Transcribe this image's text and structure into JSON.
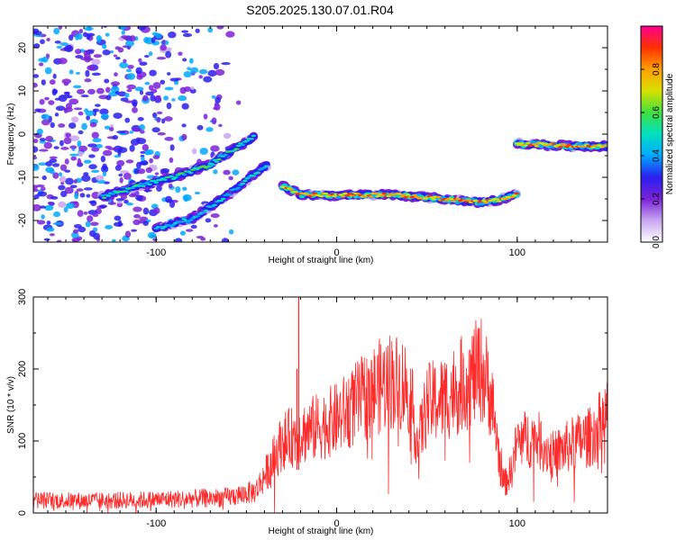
{
  "title": "S205.2025.130.07.01.R04",
  "chart_data": [
    {
      "type": "heatmap",
      "xlabel": "Height of straight line (km)",
      "ylabel": "Frequency (Hz)",
      "xlim": [
        -168,
        150
      ],
      "ylim": [
        -25,
        25
      ],
      "xticks": [
        -100,
        0,
        100
      ],
      "yticks": [
        -20,
        -10,
        0,
        10,
        20
      ],
      "colorbar": {
        "label": "Normalized spectral amplitude",
        "range": [
          0,
          1
        ],
        "ticks": [
          0.0,
          0.2,
          0.4,
          0.6,
          0.8
        ],
        "tick_labels": [
          "0.0",
          "0.2",
          "0.4",
          "0.6",
          "0.8"
        ],
        "colors": [
          "#ffffff",
          "#c9a6f0",
          "#7a22d8",
          "#2a1ff0",
          "#00a8ff",
          "#00e0c0",
          "#40e040",
          "#d8e000",
          "#ffa000",
          "#ff3000",
          "#ff0090"
        ]
      },
      "features": [
        {
          "name": "main_track",
          "points": [
            [
              -30,
              -12
            ],
            [
              -20,
              -14
            ],
            [
              0,
              -14.2
            ],
            [
              30,
              -14
            ],
            [
              60,
              -15
            ],
            [
              80,
              -15.8
            ],
            [
              90,
              -15.2
            ],
            [
              100,
              -13.8
            ]
          ],
          "amplitude": 0.8
        },
        {
          "name": "upper_track",
          "points": [
            [
              100,
              -2.2
            ],
            [
              115,
              -2.5
            ],
            [
              130,
              -2.8
            ],
            [
              150,
              -2.8
            ]
          ],
          "amplitude": 0.8
        },
        {
          "name": "low_branch",
          "points": [
            [
              -130,
              -14.5
            ],
            [
              -110,
              -12
            ],
            [
              -90,
              -10
            ],
            [
              -70,
              -7
            ],
            [
              -55,
              -3
            ],
            [
              -45,
              -0.5
            ]
          ],
          "amplitude": 0.5
        },
        {
          "name": "lower_branch",
          "points": [
            [
              -100,
              -22
            ],
            [
              -80,
              -19.5
            ],
            [
              -60,
              -14
            ],
            [
              -45,
              -9
            ],
            [
              -38,
              -7
            ]
          ],
          "amplitude": 0.45
        },
        {
          "name": "noise_field",
          "x_range": [
            -168,
            -50
          ],
          "y_range": [
            -25,
            25
          ],
          "amplitude": 0.3
        }
      ]
    },
    {
      "type": "line",
      "xlabel": "Height of straight line (km)",
      "ylabel": "SNR (10 * v/v)",
      "xlim": [
        -168,
        150
      ],
      "ylim": [
        0,
        300
      ],
      "xticks": [
        -100,
        0,
        100
      ],
      "yticks": [
        0,
        100,
        200,
        300
      ],
      "color": "#ff2a2a",
      "envelope_x": [
        -168,
        -140,
        -110,
        -80,
        -60,
        -45,
        -38,
        -30,
        -20,
        -10,
        0,
        10,
        20,
        30,
        40,
        45,
        50,
        60,
        70,
        80,
        85,
        90,
        93,
        97,
        100,
        110,
        120,
        130,
        140,
        150
      ],
      "envelope_y": [
        18,
        17,
        18,
        20,
        22,
        30,
        60,
        100,
        110,
        120,
        130,
        150,
        170,
        185,
        175,
        95,
        150,
        160,
        180,
        200,
        170,
        80,
        40,
        60,
        100,
        105,
        80,
        95,
        105,
        135
      ],
      "spikes": [
        {
          "x": -21,
          "y": 300
        },
        {
          "x": -22,
          "y": 200
        }
      ]
    }
  ]
}
